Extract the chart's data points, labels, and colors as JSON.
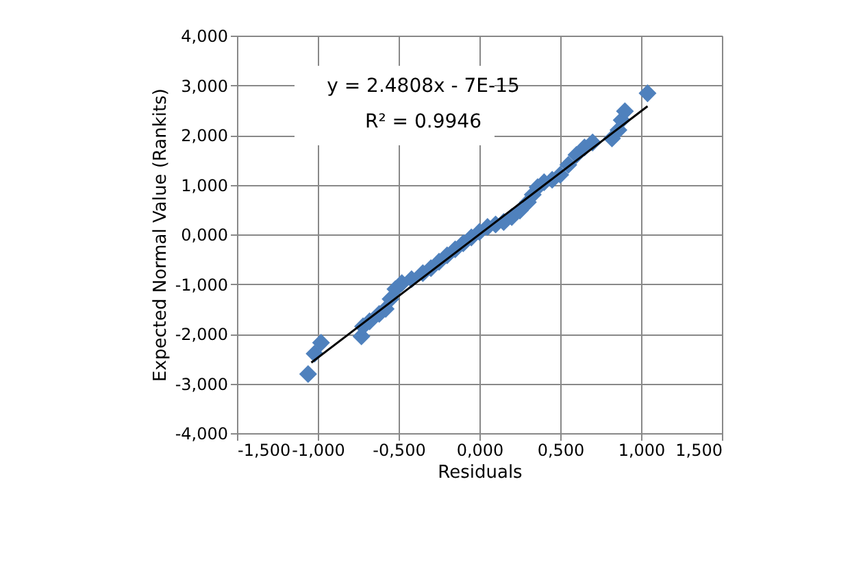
{
  "chart_data": {
    "type": "scatter",
    "xlabel": "Residuals",
    "ylabel": "Expected Normal Value (Rankits)",
    "annotations": [
      "y = 2.4808x - 7E-15",
      "R² = 0.9946"
    ],
    "xlim": [
      -1.5,
      1.5
    ],
    "ylim": [
      -4,
      4
    ],
    "xticks": [
      {
        "value": -1.5,
        "label": "-1,500"
      },
      {
        "value": -1.0,
        "label": "-1,000"
      },
      {
        "value": -0.5,
        "label": "-0,500"
      },
      {
        "value": 0,
        "label": "0,000"
      },
      {
        "value": 0.5,
        "label": "0,500"
      },
      {
        "value": 1.0,
        "label": "1,000"
      },
      {
        "value": 1.5,
        "label": "1,500"
      }
    ],
    "yticks": [
      {
        "value": -4,
        "label": "-4,000"
      },
      {
        "value": -3,
        "label": "-3,000"
      },
      {
        "value": -2,
        "label": "-2,000"
      },
      {
        "value": -1,
        "label": "-1,000"
      },
      {
        "value": 0,
        "label": "0,000"
      },
      {
        "value": 1,
        "label": "1,000"
      },
      {
        "value": 2,
        "label": "2,000"
      },
      {
        "value": 3,
        "label": "3,000"
      },
      {
        "value": 4,
        "label": "4,000"
      }
    ],
    "grid": true,
    "marker": "diamond",
    "series": [
      {
        "color": "#4f81bd",
        "x": [
          -1.06,
          -1.02,
          -0.98,
          -0.73,
          -0.72,
          -0.68,
          -0.62,
          -0.58,
          -0.55,
          -0.52,
          -0.48,
          -0.42,
          -0.35,
          -0.3,
          -0.25,
          -0.2,
          -0.15,
          -0.1,
          -0.05,
          0.0,
          0.05,
          0.1,
          0.15,
          0.2,
          0.25,
          0.3,
          0.33,
          0.36,
          0.4,
          0.45,
          0.5,
          0.55,
          0.6,
          0.65,
          0.7,
          0.82,
          0.86,
          0.88,
          0.9,
          1.04
        ],
        "values": [
          -2.81,
          -2.4,
          -2.18,
          -2.05,
          -1.85,
          -1.75,
          -1.6,
          -1.5,
          -1.3,
          -1.1,
          -0.98,
          -0.9,
          -0.78,
          -0.68,
          -0.55,
          -0.42,
          -0.3,
          -0.18,
          -0.06,
          0.05,
          0.15,
          0.2,
          0.25,
          0.35,
          0.48,
          0.65,
          0.8,
          0.95,
          1.05,
          1.1,
          1.2,
          1.4,
          1.6,
          1.75,
          1.85,
          1.93,
          2.1,
          2.3,
          2.48,
          2.84
        ]
      },
      {
        "type": "line",
        "marker": "none",
        "color": "#000000",
        "x": [
          -1.04,
          1.04
        ],
        "values": [
          -2.58,
          2.58
        ]
      }
    ]
  }
}
